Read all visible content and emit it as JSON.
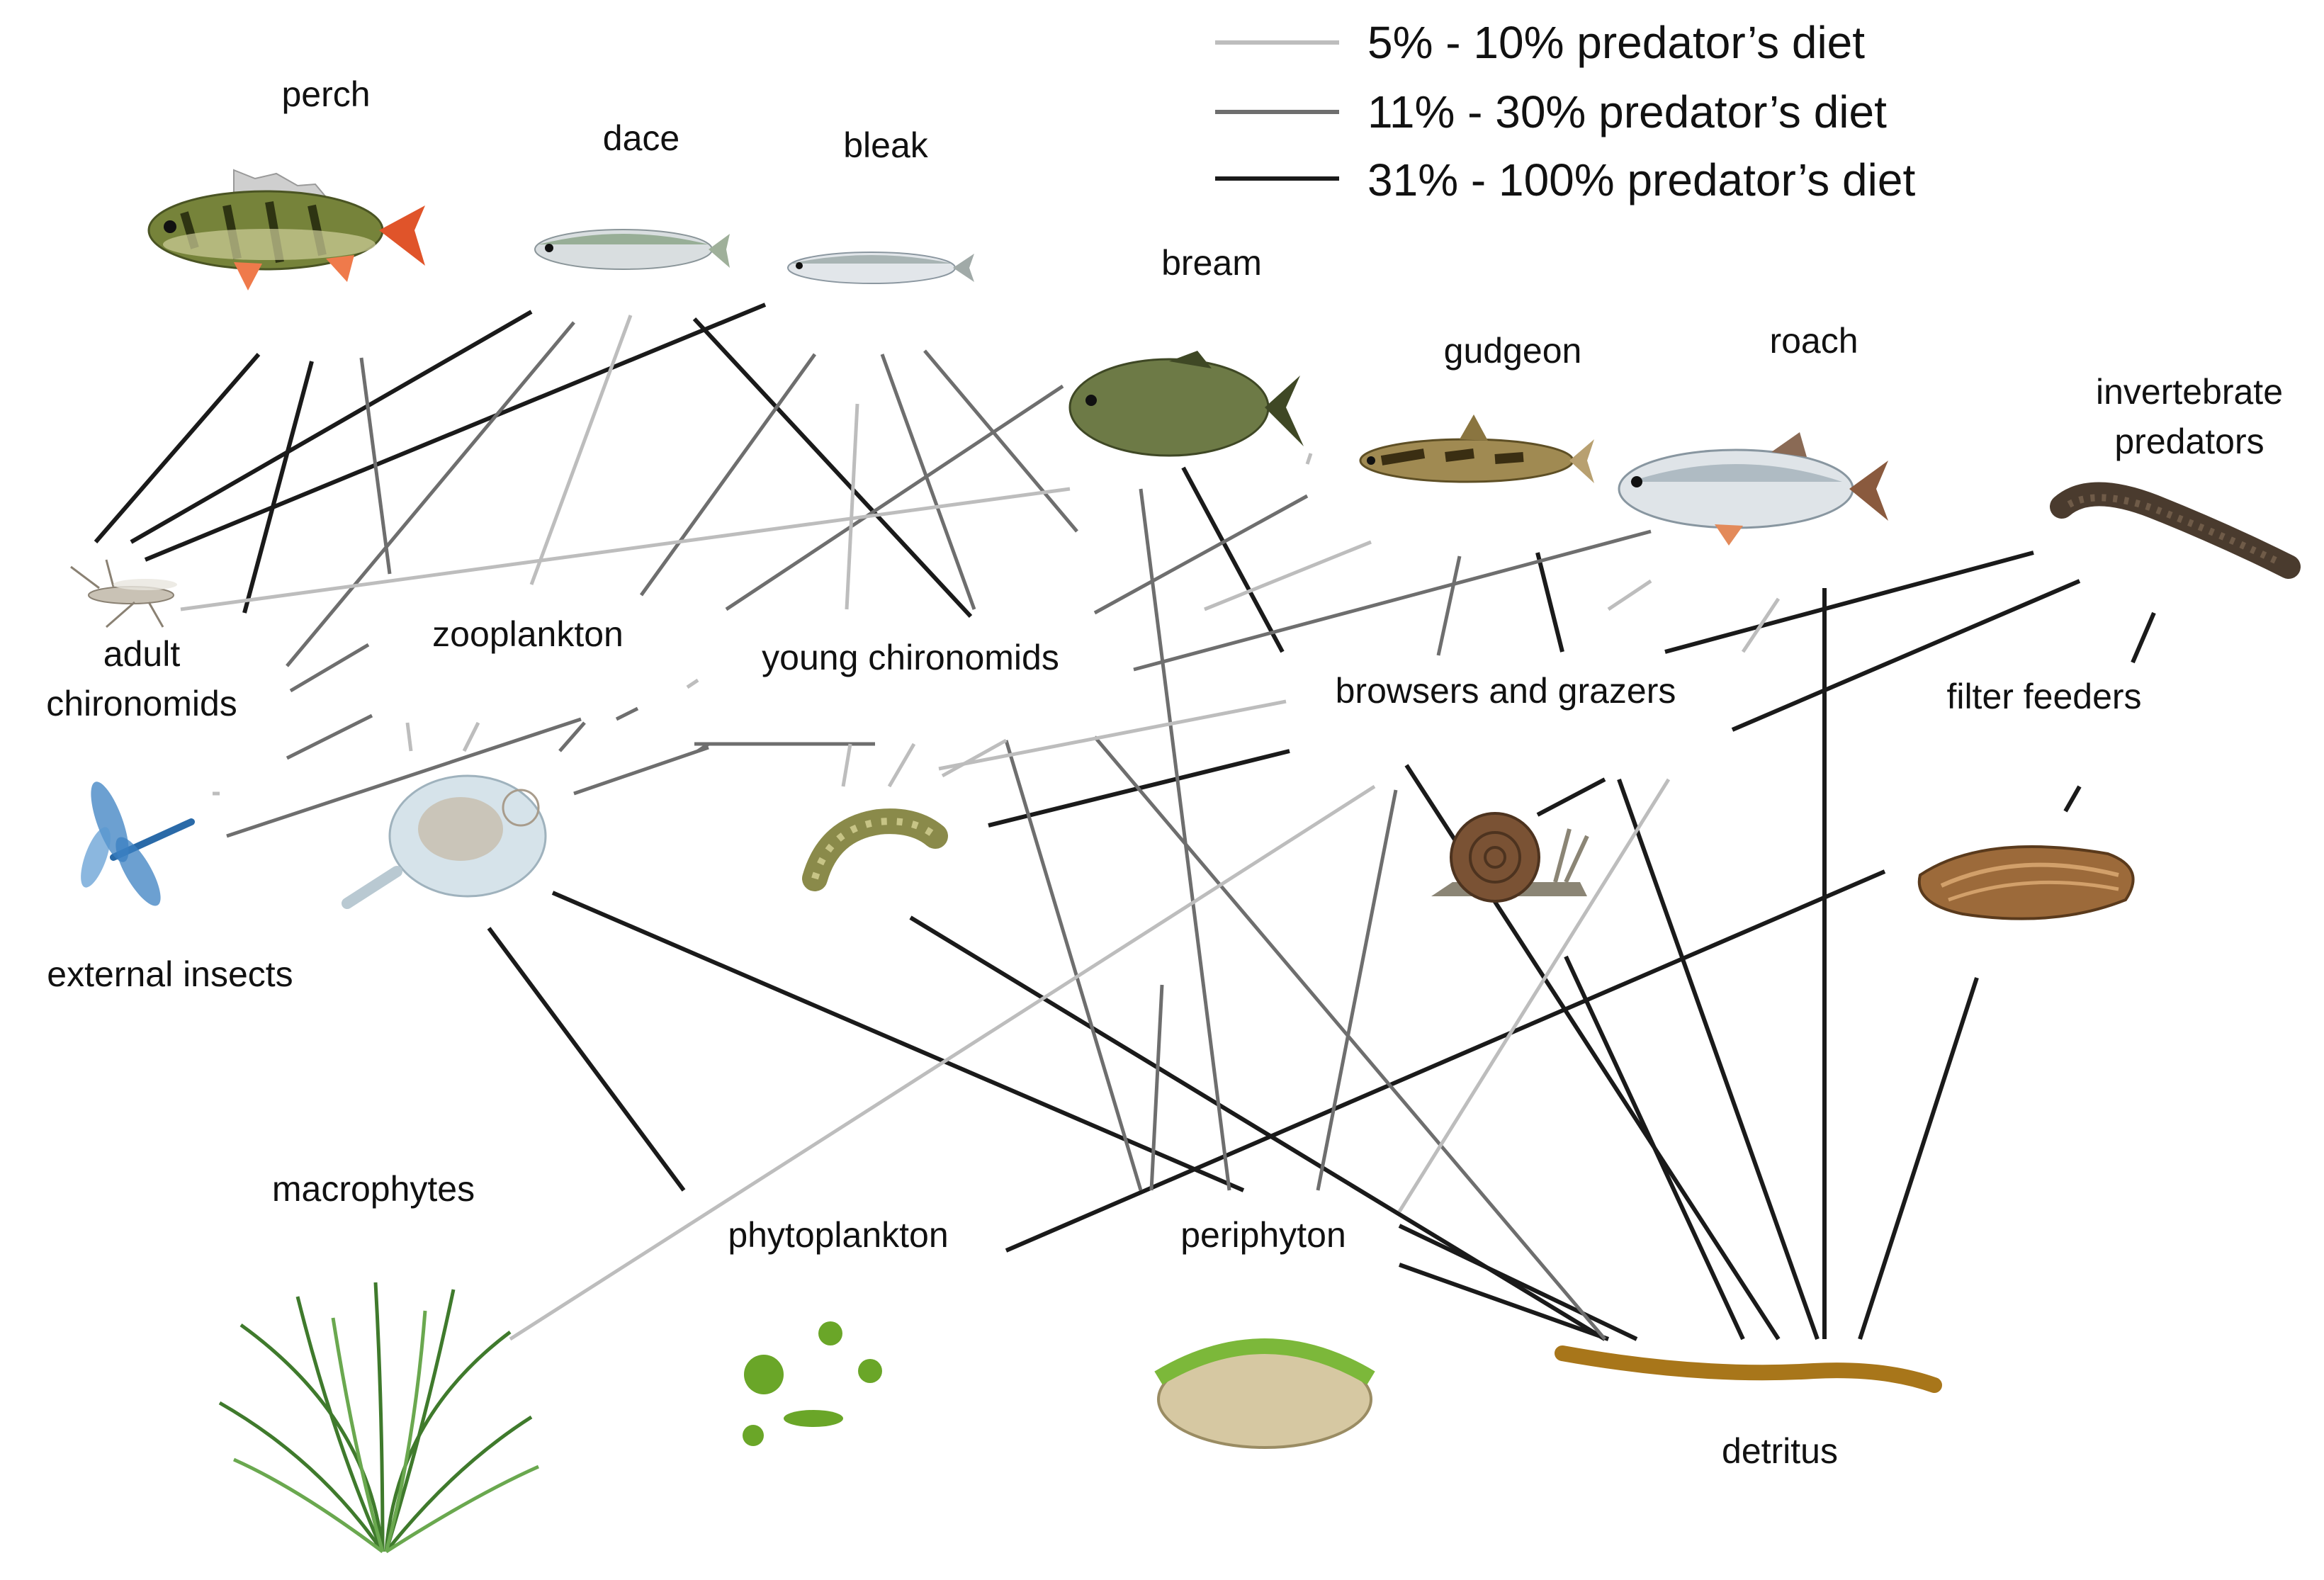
{
  "legend": {
    "items": [
      {
        "label": "5% - 10% predator’s diet",
        "color": "#bdbdbd"
      },
      {
        "label": "11% - 30% predator’s diet",
        "color": "#6e6e6e"
      },
      {
        "label": "31% - 100% predator’s diet",
        "color": "#1a1a1a"
      }
    ]
  },
  "nodes": {
    "perch": {
      "label": "perch",
      "icon": "perch-fish-icon"
    },
    "dace": {
      "label": "dace",
      "icon": "dace-fish-icon"
    },
    "bleak": {
      "label": "bleak",
      "icon": "bleak-fish-icon"
    },
    "bream": {
      "label": "bream",
      "icon": "bream-fish-icon"
    },
    "gudgeon": {
      "label": "gudgeon",
      "icon": "gudgeon-fish-icon"
    },
    "roach": {
      "label": "roach",
      "icon": "roach-fish-icon"
    },
    "invertebrate_predators": {
      "label_line1": "invertebrate",
      "label_line2": "predators",
      "icon": "leech-icon"
    },
    "adult_chironomids": {
      "label_line1": "adult",
      "label_line2": "chironomids",
      "icon": "midge-icon"
    },
    "zooplankton": {
      "label": "zooplankton",
      "icon": "rotifer-icon"
    },
    "young_chironomids": {
      "label": "young chironomids",
      "icon": "larva-icon"
    },
    "browsers_and_grazers": {
      "label": "browsers and grazers",
      "icon": "snail-icon"
    },
    "filter_feeders": {
      "label": "filter feeders",
      "icon": "mussel-icon"
    },
    "external_insects": {
      "label": "external insects",
      "icon": "dragonfly-icon"
    },
    "macrophytes": {
      "label": "macrophytes",
      "icon": "grass-icon"
    },
    "phytoplankton": {
      "label": "phytoplankton",
      "icon": "algae-cells-icon"
    },
    "periphyton": {
      "label": "periphyton",
      "icon": "biofilm-icon"
    },
    "detritus": {
      "label": "detritus",
      "icon": "detritus-icon"
    }
  },
  "colors": {
    "light": "#bdbdbd",
    "medium": "#6e6e6e",
    "dark": "#1a1a1a",
    "algae": "#6aa628",
    "detritus": "#a8761a"
  }
}
